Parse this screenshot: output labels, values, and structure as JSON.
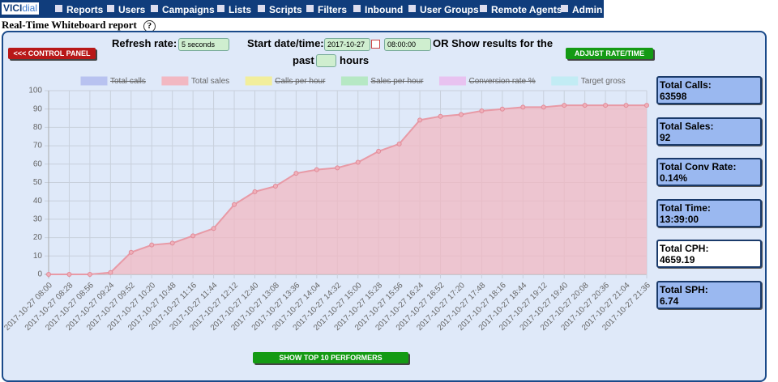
{
  "nav": {
    "logo_a": "VICI",
    "logo_b": "dial",
    "items": [
      "Reports",
      "Users",
      "Campaigns",
      "Lists",
      "Scripts",
      "Filters",
      "Inbound",
      "User Groups",
      "Remote Agents",
      "Admin"
    ]
  },
  "header": {
    "title": "Real-Time Whiteboard report",
    "help": "?"
  },
  "form": {
    "refresh_label": "Refresh rate:",
    "refresh_value": "5 seconds",
    "start_label": "Start date/time:",
    "date_value": "2017-10-27",
    "time_value": "08:00:00",
    "or_label": "OR Show results for the",
    "past_label": "past",
    "hours_label": "hours"
  },
  "buttons": {
    "control_panel": "<<< CONTROL PANEL",
    "adjust": "ADJUST RATE/TIME",
    "top10": "SHOW TOP 10 PERFORMERS"
  },
  "stats": [
    {
      "label": "Total Calls:",
      "value": "63598"
    },
    {
      "label": "Total Sales:",
      "value": "92"
    },
    {
      "label": "Total Conv Rate:",
      "value": "0.14%"
    },
    {
      "label": "Total Time:",
      "value": "13:39:00"
    },
    {
      "label": "Total CPH:",
      "value": "4659.19"
    },
    {
      "label": "Total SPH:",
      "value": "6.74"
    }
  ],
  "chart_data": {
    "type": "line",
    "categories": [
      "2017-10-27 08:00",
      "2017-10-27 08:28",
      "2017-10-27 08:56",
      "2017-10-27 09:24",
      "2017-10-27 09:52",
      "2017-10-27 10:20",
      "2017-10-27 10:48",
      "2017-10-27 11:16",
      "2017-10-27 11:44",
      "2017-10-27 12:12",
      "2017-10-27 12:40",
      "2017-10-27 13:08",
      "2017-10-27 13:36",
      "2017-10-27 14:04",
      "2017-10-27 14:32",
      "2017-10-27 15:00",
      "2017-10-27 15:28",
      "2017-10-27 15:56",
      "2017-10-27 16:24",
      "2017-10-27 16:52",
      "2017-10-27 17:20",
      "2017-10-27 17:48",
      "2017-10-27 18:16",
      "2017-10-27 18:44",
      "2017-10-27 19:12",
      "2017-10-27 19:40",
      "2017-10-27 20:08",
      "2017-10-27 20:36",
      "2017-10-27 21:04",
      "2017-10-27 21:36"
    ],
    "series": [
      {
        "name": "Total calls",
        "color": "#b8c2f0",
        "hidden": true
      },
      {
        "name": "Total sales",
        "color": "#f2b8c2",
        "hidden": false,
        "values": [
          0,
          0,
          0,
          1,
          12,
          16,
          17,
          21,
          25,
          38,
          45,
          48,
          55,
          57,
          58,
          61,
          67,
          71,
          84,
          86,
          87,
          89,
          90,
          91,
          91,
          92,
          92,
          92,
          92,
          92
        ]
      },
      {
        "name": "Calls per hour",
        "color": "#f2ee9c",
        "hidden": true
      },
      {
        "name": "Sales per hour",
        "color": "#b6e8c4",
        "hidden": true
      },
      {
        "name": "Conversion rate %",
        "color": "#e8c2f0",
        "hidden": true
      },
      {
        "name": "Target gross",
        "color": "#c2ecf4",
        "hidden": false
      }
    ],
    "ylim": [
      0,
      100
    ],
    "yticks": [
      0,
      10,
      20,
      30,
      40,
      50,
      60,
      70,
      80,
      90,
      100
    ],
    "grid": true
  }
}
